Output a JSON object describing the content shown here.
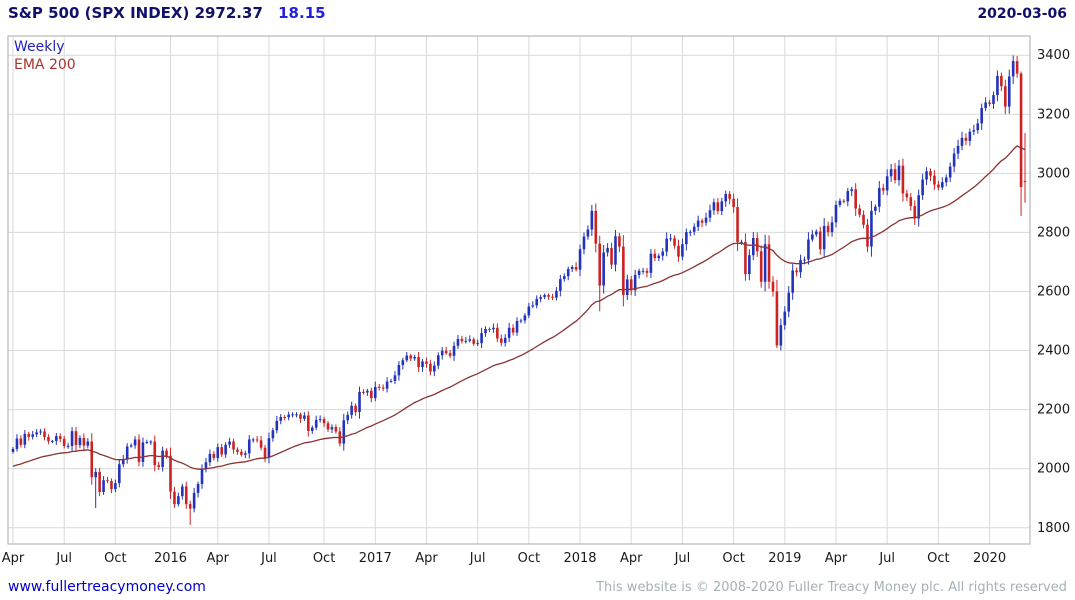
{
  "header": {
    "instrument": "S&P 500 (SPX INDEX)",
    "last": "2972.37",
    "change": "18.15",
    "date": "2020-03-06"
  },
  "legend": {
    "timeframe": "Weekly",
    "ema_label": "EMA 200"
  },
  "footer": {
    "site": "www.fullertreacymoney.com",
    "copyright": "This website is © 2008-2020 Fuller Treacy Money plc. All rights reserved"
  },
  "chart_data": {
    "type": "candlestick",
    "title": "S&P 500 (SPX INDEX)",
    "timeframe": "weekly",
    "ylim": [
      1745,
      3465
    ],
    "y_ticks": [
      1800,
      2000,
      2200,
      2400,
      2600,
      2800,
      3000,
      3200,
      3400
    ],
    "x_ticks": [
      {
        "label": "Apr",
        "i": 0
      },
      {
        "label": "Jul",
        "i": 13
      },
      {
        "label": "Oct",
        "i": 26
      },
      {
        "label": "2016",
        "i": 40
      },
      {
        "label": "Apr",
        "i": 52
      },
      {
        "label": "Jul",
        "i": 65
      },
      {
        "label": "Oct",
        "i": 79
      },
      {
        "label": "2017",
        "i": 92
      },
      {
        "label": "Apr",
        "i": 105
      },
      {
        "label": "Jul",
        "i": 118
      },
      {
        "label": "Oct",
        "i": 131
      },
      {
        "label": "2018",
        "i": 144
      },
      {
        "label": "Apr",
        "i": 157
      },
      {
        "label": "Jul",
        "i": 170
      },
      {
        "label": "Oct",
        "i": 183
      },
      {
        "label": "2019",
        "i": 196
      },
      {
        "label": "Apr",
        "i": 209
      },
      {
        "label": "Jul",
        "i": 222
      },
      {
        "label": "Oct",
        "i": 235
      },
      {
        "label": "2020",
        "i": 248
      }
    ],
    "closes": [
      2067,
      2102,
      2081,
      2118,
      2108,
      2116,
      2123,
      2126,
      2107,
      2093,
      2094,
      2110,
      2101,
      2077,
      2077,
      2127,
      2080,
      2104,
      2078,
      2092,
      1971,
      1989,
      1921,
      1961,
      1958,
      1931,
      1951,
      2015,
      2033,
      2075,
      2079,
      2099,
      2023,
      2089,
      2090,
      2092,
      2012,
      2006,
      2061,
      2044,
      1922,
      1880,
      1907,
      1940,
      1880,
      1865,
      1918,
      1948,
      2000,
      2022,
      2050,
      2036,
      2073,
      2048,
      2081,
      2092,
      2065,
      2057,
      2047,
      2052,
      2099,
      2099,
      2096,
      2071,
      2037,
      2103,
      2130,
      2162,
      2175,
      2174,
      2183,
      2184,
      2184,
      2169,
      2180,
      2128,
      2139,
      2165,
      2168,
      2154,
      2133,
      2141,
      2126,
      2085,
      2164,
      2182,
      2213,
      2192,
      2260,
      2258,
      2264,
      2239,
      2277,
      2275,
      2271,
      2295,
      2297,
      2316,
      2351,
      2367,
      2383,
      2373,
      2378,
      2344,
      2363,
      2355,
      2329,
      2349,
      2384,
      2399,
      2391,
      2382,
      2416,
      2439,
      2432,
      2433,
      2438,
      2423,
      2425,
      2459,
      2473,
      2472,
      2477,
      2441,
      2426,
      2443,
      2477,
      2461,
      2500,
      2502,
      2519,
      2549,
      2553,
      2575,
      2581,
      2588,
      2582,
      2579,
      2602,
      2642,
      2652,
      2676,
      2683,
      2674,
      2743,
      2786,
      2810,
      2873,
      2762,
      2620,
      2732,
      2747,
      2691,
      2787,
      2752,
      2588,
      2641,
      2604,
      2656,
      2670,
      2670,
      2663,
      2728,
      2713,
      2721,
      2735,
      2779,
      2780,
      2755,
      2718,
      2760,
      2801,
      2802,
      2819,
      2840,
      2833,
      2850,
      2875,
      2902,
      2872,
      2905,
      2930,
      2914,
      2886,
      2767,
      2768,
      2659,
      2723,
      2781,
      2736,
      2633,
      2760,
      2633,
      2600,
      2417,
      2486,
      2532,
      2596,
      2671,
      2665,
      2707,
      2708,
      2776,
      2793,
      2803,
      2743,
      2822,
      2801,
      2834,
      2893,
      2907,
      2905,
      2940,
      2946,
      2881,
      2860,
      2826,
      2752,
      2873,
      2887,
      2950,
      2942,
      2990,
      3014,
      2977,
      3026,
      2932,
      2919,
      2889,
      2847,
      2926,
      2979,
      3007,
      2992,
      2962,
      2952,
      2970,
      2986,
      3023,
      3067,
      3093,
      3120,
      3110,
      3141,
      3146,
      3169,
      3221,
      3240,
      3235,
      3265,
      3330,
      3295,
      3226,
      3328,
      3380,
      3338,
      2954,
      2972.37
    ],
    "overrides": {
      "21": {
        "low": 1867
      },
      "45": {
        "low": 1810
      },
      "149": {
        "low": 2533
      },
      "194": {
        "low": 2408
      },
      "256": {
        "high": 3345,
        "low": 2856
      },
      "257": {
        "open": 2974,
        "high": 3136,
        "low": 2901
      }
    },
    "ema_label": "EMA 200",
    "ema_period_weeks": 40,
    "grid": true,
    "colors": {
      "up": "#2233bb",
      "down": "#cc2222",
      "ema": "#8b3333",
      "grid": "#d9d9d9",
      "border": "#aaaaaa"
    }
  }
}
